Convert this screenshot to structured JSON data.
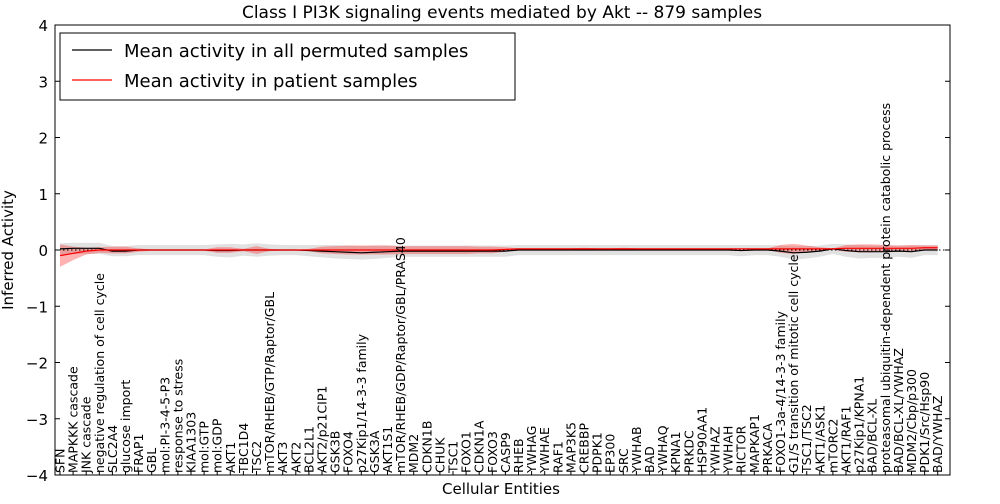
{
  "chart_data": {
    "type": "line",
    "title": "Class I PI3K signaling events mediated by Akt -- 879 samples",
    "xlabel": "Cellular Entities",
    "ylabel": "Inferred Activity",
    "ylim": [
      -4,
      4
    ],
    "yticks": [
      4,
      3,
      2,
      1,
      0,
      -1,
      -2,
      -3,
      -4
    ],
    "ytick_labels": [
      "4",
      "3",
      "2",
      "1",
      "0",
      "−1",
      "−2",
      "−3",
      "−4"
    ],
    "legend_placement": "top-left",
    "legend": [
      {
        "label": "Mean activity in all permuted samples",
        "color": "#000000"
      },
      {
        "label": "Mean activity in patient samples",
        "color": "#ff0000"
      }
    ],
    "colors": {
      "permuted": "#000000",
      "patient": "#ff0000",
      "permuted_band": "#cccccc",
      "patient_band": "#ff0000"
    },
    "categories": [
      "SFN",
      "MAPKKK cascade",
      "JNK cascade",
      "negative regulation of cell cycle",
      "SLC2A4",
      "glucose import",
      "FRAP1",
      "GBL",
      "mol:PI-3-4-5-P3",
      "response to stress",
      "KIAA1303",
      "mol:GTP",
      "mol:GDP",
      "AKT1",
      "TBC1D4",
      "TSC2",
      "mTOR/RHEB/GTP/Raptor/GBL",
      "AKT3",
      "AKT2",
      "BCL2L1",
      "AKT2/p21CIP1",
      "GSK3B",
      "FOXO4",
      "p27Kip1/14-3-3 family",
      "GSK3A",
      "AKT1S1",
      "mTOR/RHEB/GDP/Raptor/GBL/PRAS40",
      "MDM2",
      "CDKN1B",
      "CHUK",
      "TSC1",
      "FOXO1",
      "CDKN1A",
      "FOXO3",
      "CASP9",
      "RHEB",
      "YWHAG",
      "YWHAE",
      "RAF1",
      "MAP3K5",
      "CREBBP",
      "PDPK1",
      "EP300",
      "SRC",
      "YWHAB",
      "BAD",
      "YWHAQ",
      "KPNA1",
      "PRKDC",
      "HSP90AA1",
      "YWHAZ",
      "YWHAH",
      "RICTOR",
      "MAPKAP1",
      "PRKACA",
      "FOXO1-3a-4/14-3-3 family",
      "G1/S transition of mitotic cell cycle",
      "TSC1/TSC2",
      "AKT1/ASK1",
      "mTORC2",
      "AKT1/RAF1",
      "p27Kip1/KPNA1",
      "BAD/BCL-XL",
      "proteasomal ubiquitin-dependent protein catabolic process",
      "BAD/BCL-XL/YWHAZ",
      "MDM2/Cbp/p300",
      "PDK1/Src/Hsp90",
      "BAD/YWHAZ"
    ],
    "series": [
      {
        "name": "Mean activity in all permuted samples",
        "values": [
          0.02,
          0.03,
          0.03,
          0.03,
          -0.02,
          -0.02,
          0,
          0,
          0,
          0,
          0,
          0,
          -0.01,
          -0.01,
          0,
          0,
          0,
          0,
          0,
          -0.01,
          -0.02,
          -0.03,
          -0.04,
          -0.05,
          -0.04,
          -0.03,
          -0.02,
          -0.02,
          -0.02,
          -0.02,
          -0.02,
          -0.02,
          -0.02,
          -0.02,
          -0.02,
          0,
          0,
          0,
          0,
          0,
          0,
          0,
          0,
          0,
          0,
          0,
          0,
          0,
          0,
          0,
          0,
          0,
          -0.01,
          0,
          0,
          -0.02,
          -0.05,
          -0.04,
          -0.02,
          0.02,
          -0.01,
          -0.03,
          -0.03,
          -0.03,
          -0.02,
          -0.03,
          0,
          0
        ],
        "spread": [
          0.1,
          0.1,
          0.1,
          0.1,
          0.09,
          0.09,
          0.09,
          0.09,
          0.09,
          0.09,
          0.09,
          0.09,
          0.11,
          0.12,
          0.1,
          0.12,
          0.1,
          0.09,
          0.09,
          0.1,
          0.11,
          0.12,
          0.12,
          0.12,
          0.12,
          0.11,
          0.1,
          0.1,
          0.1,
          0.1,
          0.1,
          0.1,
          0.1,
          0.1,
          0.1,
          0.09,
          0.09,
          0.09,
          0.09,
          0.09,
          0.09,
          0.09,
          0.09,
          0.09,
          0.09,
          0.09,
          0.09,
          0.09,
          0.09,
          0.09,
          0.09,
          0.09,
          0.1,
          0.09,
          0.09,
          0.1,
          0.12,
          0.11,
          0.1,
          0.09,
          0.11,
          0.12,
          0.11,
          0.11,
          0.1,
          0.11,
          0.09,
          0.09
        ]
      },
      {
        "name": "Mean activity in patient samples",
        "values": [
          -0.1,
          -0.06,
          -0.02,
          0,
          0,
          0,
          0,
          0,
          0,
          0,
          0,
          0,
          0,
          0,
          0,
          0,
          0,
          0,
          0,
          0,
          0,
          0,
          0,
          0,
          0,
          0,
          0,
          0,
          0,
          0,
          0,
          0,
          0,
          0,
          0.01,
          0.02,
          0.02,
          0.02,
          0.02,
          0.02,
          0.02,
          0.02,
          0.02,
          0.02,
          0.02,
          0.02,
          0.02,
          0.02,
          0.02,
          0.02,
          0.02,
          0.02,
          0.02,
          0.02,
          0.02,
          0.02,
          0.02,
          0.02,
          0.02,
          0.02,
          0.03,
          0.03,
          0.03,
          0.03,
          0.03,
          0.03,
          0.04,
          0.04
        ],
        "spread": [
          0.2,
          0.12,
          0.06,
          0.05,
          0.06,
          0.06,
          0.03,
          0.01,
          0.01,
          0.01,
          0.01,
          0.01,
          0.05,
          0.05,
          0.02,
          0.07,
          0.02,
          0.01,
          0.01,
          0.02,
          0.06,
          0.07,
          0.08,
          0.08,
          0.08,
          0.08,
          0.07,
          0.07,
          0.07,
          0.07,
          0.07,
          0.07,
          0.06,
          0.06,
          0.04,
          0.01,
          0.01,
          0.01,
          0.01,
          0.01,
          0.02,
          0.01,
          0.01,
          0.02,
          0.01,
          0.01,
          0.01,
          0.01,
          0.01,
          0.01,
          0.01,
          0.01,
          0.01,
          0.01,
          0.01,
          0.07,
          0.09,
          0.06,
          0.03,
          0.01,
          0.06,
          0.07,
          0.07,
          0.06,
          0.05,
          0.06,
          0.04,
          0.04
        ]
      }
    ]
  }
}
